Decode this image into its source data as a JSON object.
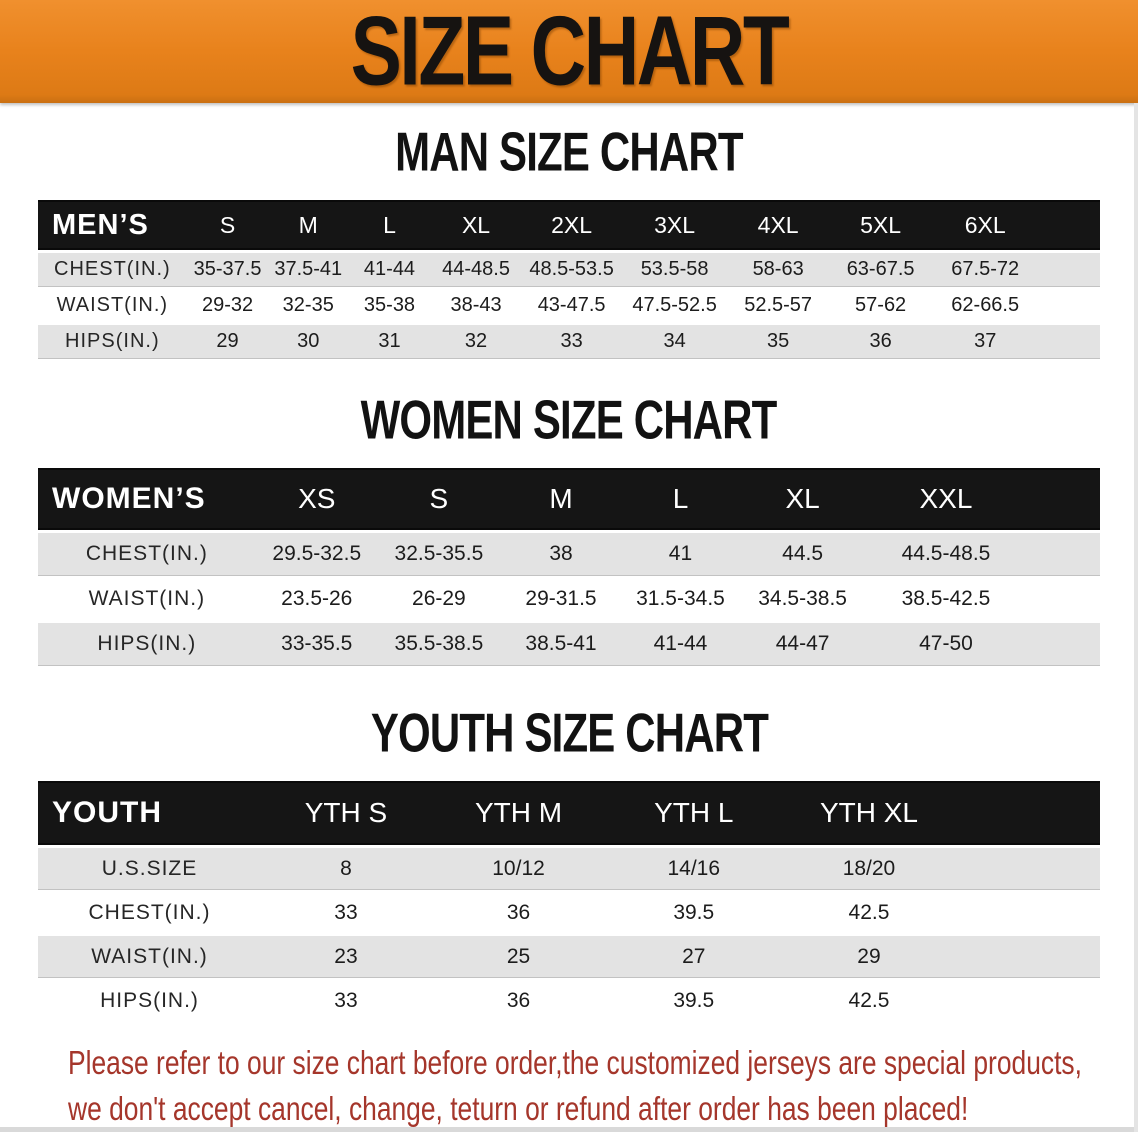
{
  "banner": {
    "title": "SIZE CHART",
    "bg_color": "#E8821C",
    "text_color": "#161311"
  },
  "colors": {
    "table_header_bg": "#151515",
    "table_header_text": "#FFFFFF",
    "stripe_row_bg": "#E3E3E3",
    "disclaimer_text": "#A5362B"
  },
  "sections": [
    {
      "heading": "MAN SIZE CHART",
      "table": {
        "header": [
          "MEN’S",
          "S",
          "M",
          "L",
          "XL",
          "2XL",
          "3XL",
          "4XL",
          "5XL",
          "6XL"
        ],
        "rows": [
          [
            "CHEST(IN.)",
            "35-37.5",
            "37.5-41",
            "41-44",
            "44-48.5",
            "48.5-53.5",
            "53.5-58",
            "58-63",
            "63-67.5",
            "67.5-72"
          ],
          [
            "WAIST(IN.)",
            "29-32",
            "32-35",
            "35-38",
            "38-43",
            "43-47.5",
            "47.5-52.5",
            "52.5-57",
            "57-62",
            "62-66.5"
          ],
          [
            "HIPS(IN.)",
            "29",
            "30",
            "31",
            "32",
            "33",
            "34",
            "35",
            "36",
            "37"
          ]
        ]
      }
    },
    {
      "heading": "WOMEN SIZE CHART",
      "table": {
        "header": [
          "WOMEN’S",
          "XS",
          "S",
          "M",
          "L",
          "XL",
          "XXL"
        ],
        "rows": [
          [
            "CHEST(IN.)",
            "29.5-32.5",
            "32.5-35.5",
            "38",
            "41",
            "44.5",
            "44.5-48.5"
          ],
          [
            "WAIST(IN.)",
            "23.5-26",
            "26-29",
            "29-31.5",
            "31.5-34.5",
            "34.5-38.5",
            "38.5-42.5"
          ],
          [
            "HIPS(IN.)",
            "33-35.5",
            "35.5-38.5",
            "38.5-41",
            "41-44",
            "44-47",
            "47-50"
          ]
        ]
      }
    },
    {
      "heading": "YOUTH SIZE CHART",
      "table": {
        "header": [
          "YOUTH",
          "YTH S",
          "YTH M",
          "YTH L",
          "YTH XL"
        ],
        "rows": [
          [
            "U.S.SIZE",
            "8",
            "10/12",
            "14/16",
            "18/20"
          ],
          [
            "CHEST(IN.)",
            "33",
            "36",
            "39.5",
            "42.5"
          ],
          [
            "WAIST(IN.)",
            "23",
            "25",
            "27",
            "29"
          ],
          [
            "HIPS(IN.)",
            "33",
            "36",
            "39.5",
            "42.5"
          ]
        ]
      }
    }
  ],
  "disclaimer": {
    "line1": "Please refer to our size chart before order,the customized jerseys are special products,",
    "line2": "we don't accept cancel, change, teturn or refund after order has been placed!"
  }
}
